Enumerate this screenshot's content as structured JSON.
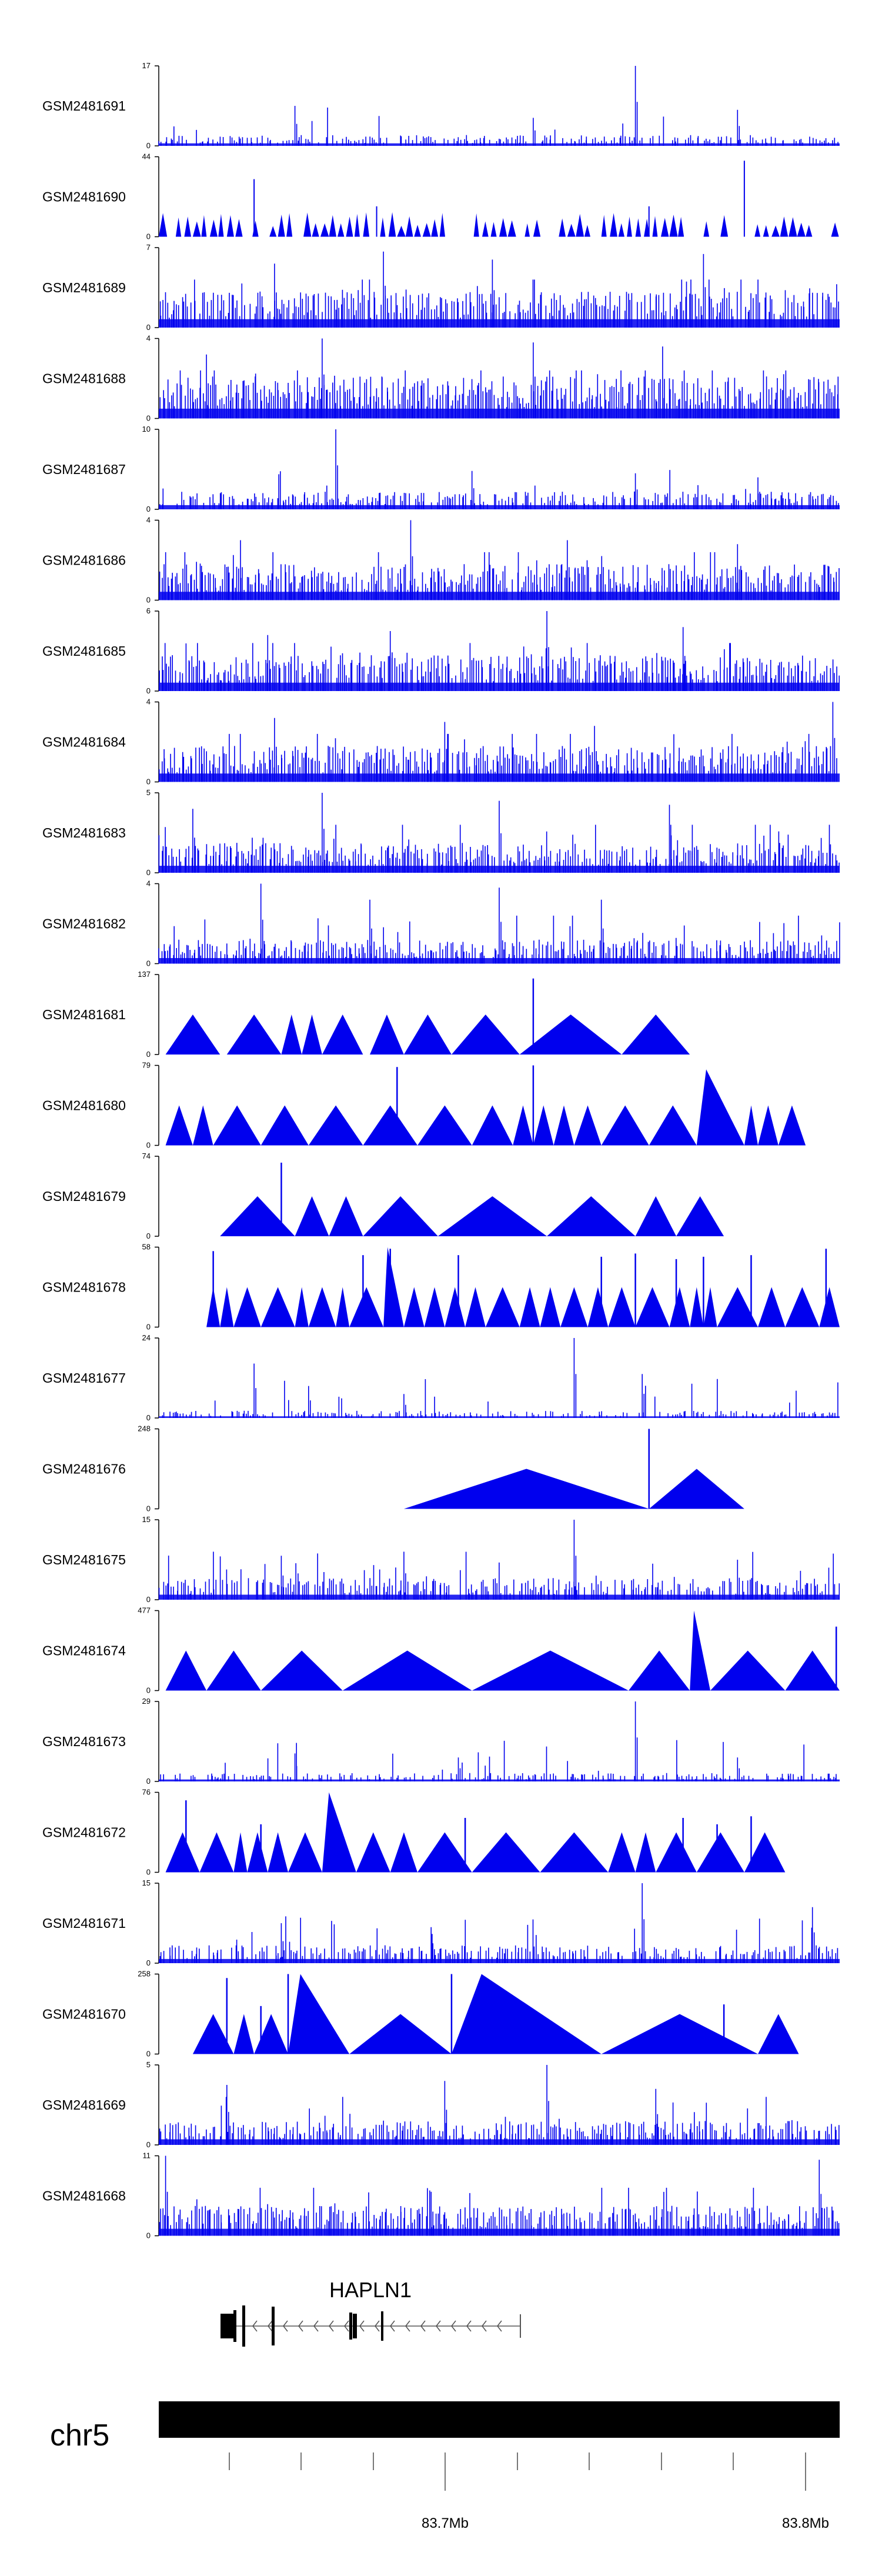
{
  "chart_data": {
    "type": "area",
    "title": "",
    "color": "#0000ee",
    "tracks": [
      {
        "name": "GSM2481691",
        "ymax": "17",
        "ymin": "0",
        "style": "dense",
        "base": 0.09,
        "density": 0.55,
        "peaks": [
          [
            0.7,
            1.0
          ],
          [
            0.85,
            0.45
          ],
          [
            0.2,
            0.5
          ],
          [
            0.55,
            0.35
          ]
        ]
      },
      {
        "name": "GSM2481690",
        "ymax": "44",
        "ymin": "0",
        "style": "sawtooth",
        "base": 0.22,
        "density": 0.5,
        "peaks": [
          [
            0.86,
            0.95
          ],
          [
            0.14,
            0.72
          ],
          [
            0.32,
            0.38
          ],
          [
            0.72,
            0.38
          ]
        ]
      },
      {
        "name": "GSM2481689",
        "ymax": "7",
        "ymin": "0",
        "style": "dense",
        "base": 0.3,
        "density": 0.85,
        "peaks": [
          [
            0.33,
            0.95
          ],
          [
            0.8,
            0.92
          ],
          [
            0.49,
            0.85
          ],
          [
            0.17,
            0.8
          ]
        ]
      },
      {
        "name": "GSM2481688",
        "ymax": "4",
        "ymin": "0",
        "style": "dense",
        "base": 0.35,
        "density": 0.95,
        "peaks": [
          [
            0.24,
            1.0
          ],
          [
            0.55,
            0.95
          ],
          [
            0.74,
            0.9
          ],
          [
            0.07,
            0.8
          ]
        ]
      },
      {
        "name": "GSM2481687",
        "ymax": "10",
        "ymin": "0",
        "style": "dense",
        "base": 0.15,
        "density": 0.75,
        "peaks": [
          [
            0.26,
            1.0
          ],
          [
            0.46,
            0.48
          ],
          [
            0.7,
            0.45
          ],
          [
            0.88,
            0.4
          ]
        ]
      },
      {
        "name": "GSM2481686",
        "ymax": "4",
        "ymin": "0",
        "style": "dense",
        "base": 0.3,
        "density": 0.9,
        "peaks": [
          [
            0.37,
            1.0
          ],
          [
            0.12,
            0.75
          ],
          [
            0.6,
            0.75
          ],
          [
            0.85,
            0.7
          ]
        ]
      },
      {
        "name": "GSM2481685",
        "ymax": "6",
        "ymin": "0",
        "style": "dense",
        "base": 0.3,
        "density": 0.9,
        "peaks": [
          [
            0.57,
            1.0
          ],
          [
            0.34,
            0.75
          ],
          [
            0.77,
            0.8
          ],
          [
            0.16,
            0.7
          ]
        ]
      },
      {
        "name": "GSM2481684",
        "ymax": "4",
        "ymin": "0",
        "style": "dense",
        "base": 0.3,
        "density": 0.9,
        "peaks": [
          [
            0.99,
            1.0
          ],
          [
            0.17,
            0.8
          ],
          [
            0.42,
            0.75
          ],
          [
            0.64,
            0.7
          ]
        ]
      },
      {
        "name": "GSM2481683",
        "ymax": "5",
        "ymin": "0",
        "style": "dense",
        "base": 0.25,
        "density": 0.85,
        "peaks": [
          [
            0.24,
            1.0
          ],
          [
            0.5,
            0.9
          ],
          [
            0.75,
            0.85
          ],
          [
            0.05,
            0.8
          ]
        ]
      },
      {
        "name": "GSM2481682",
        "ymax": "4",
        "ymin": "0",
        "style": "dense",
        "base": 0.2,
        "density": 0.85,
        "peaks": [
          [
            0.15,
            1.0
          ],
          [
            0.5,
            0.95
          ],
          [
            0.31,
            0.8
          ],
          [
            0.65,
            0.8
          ]
        ]
      },
      {
        "name": "GSM2481681",
        "ymax": "137",
        "ymin": "0",
        "style": "triangles",
        "tri": [
          [
            0.01,
            0.09,
            0.5
          ],
          [
            0.1,
            0.18,
            0.5
          ],
          [
            0.18,
            0.21,
            0.5
          ],
          [
            0.21,
            0.24,
            0.5
          ],
          [
            0.24,
            0.3,
            0.5
          ],
          [
            0.31,
            0.36,
            0.5
          ],
          [
            0.36,
            0.43,
            0.5
          ],
          [
            0.43,
            0.53,
            0.5
          ],
          [
            0.53,
            0.68,
            0.5
          ],
          [
            0.68,
            0.78,
            0.5
          ]
        ],
        "spikes": [
          [
            0.55,
            0.95
          ]
        ]
      },
      {
        "name": "GSM2481680",
        "ymax": "79",
        "ymin": "0",
        "style": "triangles",
        "tri": [
          [
            0.01,
            0.05,
            0.5
          ],
          [
            0.05,
            0.08,
            0.5
          ],
          [
            0.08,
            0.15,
            0.5
          ],
          [
            0.15,
            0.22,
            0.5
          ],
          [
            0.22,
            0.3,
            0.5
          ],
          [
            0.3,
            0.38,
            0.5
          ],
          [
            0.38,
            0.46,
            0.5
          ],
          [
            0.46,
            0.52,
            0.5
          ],
          [
            0.52,
            0.55,
            0.5
          ],
          [
            0.55,
            0.58,
            0.5
          ],
          [
            0.58,
            0.61,
            0.5
          ],
          [
            0.61,
            0.65,
            0.5
          ],
          [
            0.65,
            0.72,
            0.5
          ],
          [
            0.72,
            0.79,
            0.5
          ],
          [
            0.79,
            0.86,
            0.95
          ],
          [
            0.86,
            0.88,
            0.5
          ],
          [
            0.88,
            0.91,
            0.5
          ],
          [
            0.91,
            0.95,
            0.5
          ]
        ],
        "spikes": [
          [
            0.35,
            0.98
          ],
          [
            0.55,
            1.0
          ]
        ]
      },
      {
        "name": "GSM2481679",
        "ymax": "74",
        "ymin": "0",
        "style": "triangles",
        "tri": [
          [
            0.09,
            0.2,
            0.5
          ],
          [
            0.2,
            0.25,
            0.5
          ],
          [
            0.25,
            0.3,
            0.5
          ],
          [
            0.3,
            0.41,
            0.5
          ],
          [
            0.41,
            0.57,
            0.5
          ],
          [
            0.57,
            0.7,
            0.5
          ],
          [
            0.7,
            0.76,
            0.5
          ],
          [
            0.76,
            0.83,
            0.5
          ]
        ],
        "spikes": [
          [
            0.18,
            0.92
          ]
        ]
      },
      {
        "name": "GSM2481678",
        "ymax": "58",
        "ymin": "0",
        "style": "triangles",
        "tri": [
          [
            0.07,
            0.09,
            0.5
          ],
          [
            0.09,
            0.11,
            0.5
          ],
          [
            0.11,
            0.15,
            0.5
          ],
          [
            0.15,
            0.2,
            0.5
          ],
          [
            0.2,
            0.22,
            0.5
          ],
          [
            0.22,
            0.26,
            0.5
          ],
          [
            0.26,
            0.28,
            0.5
          ],
          [
            0.28,
            0.33,
            0.5
          ],
          [
            0.33,
            0.36,
            1.0
          ],
          [
            0.36,
            0.39,
            0.5
          ],
          [
            0.39,
            0.42,
            0.5
          ],
          [
            0.42,
            0.45,
            0.5
          ],
          [
            0.45,
            0.48,
            0.5
          ],
          [
            0.48,
            0.53,
            0.5
          ],
          [
            0.53,
            0.56,
            0.5
          ],
          [
            0.56,
            0.59,
            0.5
          ],
          [
            0.59,
            0.63,
            0.5
          ],
          [
            0.63,
            0.66,
            0.5
          ],
          [
            0.66,
            0.7,
            0.5
          ],
          [
            0.7,
            0.75,
            0.5
          ],
          [
            0.75,
            0.78,
            0.5
          ],
          [
            0.78,
            0.8,
            0.5
          ],
          [
            0.8,
            0.82,
            0.5
          ],
          [
            0.82,
            0.88,
            0.5
          ],
          [
            0.88,
            0.92,
            0.5
          ],
          [
            0.92,
            0.97,
            0.5
          ],
          [
            0.97,
            1.0,
            0.5
          ]
        ],
        "spikes": [
          [
            0.08,
            0.95
          ],
          [
            0.3,
            0.9
          ],
          [
            0.34,
            0.98
          ],
          [
            0.44,
            0.9
          ],
          [
            0.65,
            0.88
          ],
          [
            0.7,
            0.92
          ],
          [
            0.76,
            0.85
          ],
          [
            0.8,
            0.88
          ],
          [
            0.87,
            0.9
          ],
          [
            0.98,
            0.98
          ]
        ]
      },
      {
        "name": "GSM2481677",
        "ymax": "24",
        "ymin": "0",
        "style": "dense",
        "base": 0.06,
        "density": 0.5,
        "peaks": [
          [
            0.61,
            1.0
          ],
          [
            0.14,
            0.68
          ],
          [
            0.71,
            0.55
          ],
          [
            0.22,
            0.4
          ],
          [
            0.36,
            0.3
          ]
        ]
      },
      {
        "name": "GSM2481676",
        "ymax": "248",
        "ymin": "0",
        "style": "triangles",
        "tri": [
          [
            0.36,
            0.72,
            0.5
          ],
          [
            0.72,
            0.86,
            0.5
          ]
        ],
        "spikes": [
          [
            0.72,
            1.0
          ]
        ]
      },
      {
        "name": "GSM2481675",
        "ymax": "15",
        "ymin": "0",
        "style": "dense",
        "base": 0.18,
        "density": 0.7,
        "peaks": [
          [
            0.61,
            1.0
          ],
          [
            0.36,
            0.6
          ],
          [
            0.18,
            0.55
          ],
          [
            0.85,
            0.5
          ]
        ]
      },
      {
        "name": "GSM2481674",
        "ymax": "477",
        "ymin": "0",
        "style": "triangles",
        "tri": [
          [
            0.01,
            0.07,
            0.5
          ],
          [
            0.07,
            0.15,
            0.5
          ],
          [
            0.15,
            0.27,
            0.5
          ],
          [
            0.27,
            0.46,
            0.5
          ],
          [
            0.46,
            0.69,
            0.5
          ],
          [
            0.69,
            0.78,
            0.5
          ],
          [
            0.78,
            0.81,
            1.0
          ],
          [
            0.81,
            0.92,
            0.5
          ],
          [
            0.92,
            1.0,
            0.5
          ]
        ],
        "spikes": [
          [
            0.995,
            0.8
          ]
        ]
      },
      {
        "name": "GSM2481673",
        "ymax": "29",
        "ymin": "0",
        "style": "dense",
        "base": 0.07,
        "density": 0.55,
        "peaks": [
          [
            0.7,
            1.0
          ],
          [
            0.2,
            0.35
          ],
          [
            0.44,
            0.3
          ],
          [
            0.85,
            0.3
          ]
        ]
      },
      {
        "name": "GSM2481672",
        "ymax": "76",
        "ymin": "0",
        "style": "triangles",
        "tri": [
          [
            0.01,
            0.06,
            0.5
          ],
          [
            0.06,
            0.11,
            0.5
          ],
          [
            0.11,
            0.13,
            0.5
          ],
          [
            0.13,
            0.16,
            0.5
          ],
          [
            0.16,
            0.19,
            0.5
          ],
          [
            0.19,
            0.24,
            0.5
          ],
          [
            0.24,
            0.29,
            1.0
          ],
          [
            0.29,
            0.34,
            0.5
          ],
          [
            0.34,
            0.38,
            0.5
          ],
          [
            0.38,
            0.46,
            0.5
          ],
          [
            0.46,
            0.56,
            0.5
          ],
          [
            0.56,
            0.66,
            0.5
          ],
          [
            0.66,
            0.7,
            0.5
          ],
          [
            0.7,
            0.73,
            0.5
          ],
          [
            0.73,
            0.79,
            0.5
          ],
          [
            0.79,
            0.86,
            0.5
          ],
          [
            0.86,
            0.92,
            0.5
          ]
        ],
        "spikes": [
          [
            0.04,
            0.9
          ],
          [
            0.15,
            0.6
          ],
          [
            0.45,
            0.68
          ],
          [
            0.77,
            0.68
          ],
          [
            0.82,
            0.6
          ],
          [
            0.87,
            0.7
          ]
        ]
      },
      {
        "name": "GSM2481671",
        "ymax": "15",
        "ymin": "0",
        "style": "dense",
        "base": 0.15,
        "density": 0.7,
        "peaks": [
          [
            0.71,
            1.0
          ],
          [
            0.96,
            0.7
          ],
          [
            0.18,
            0.5
          ],
          [
            0.4,
            0.45
          ]
        ]
      },
      {
        "name": "GSM2481670",
        "ymax": "258",
        "ymin": "0",
        "style": "triangles",
        "tri": [
          [
            0.05,
            0.11,
            0.5
          ],
          [
            0.11,
            0.14,
            0.5
          ],
          [
            0.14,
            0.19,
            0.5
          ],
          [
            0.19,
            0.28,
            1.0
          ],
          [
            0.28,
            0.43,
            0.5
          ],
          [
            0.43,
            0.65,
            1.0
          ],
          [
            0.65,
            0.88,
            0.5
          ],
          [
            0.88,
            0.94,
            0.5
          ]
        ],
        "spikes": [
          [
            0.1,
            0.95
          ],
          [
            0.15,
            0.6
          ],
          [
            0.19,
            1.0
          ],
          [
            0.43,
            1.0
          ],
          [
            0.83,
            0.62
          ]
        ]
      },
      {
        "name": "GSM2481669",
        "ymax": "5",
        "ymin": "0",
        "style": "dense",
        "base": 0.2,
        "density": 0.8,
        "peaks": [
          [
            0.57,
            1.0
          ],
          [
            0.42,
            0.8
          ],
          [
            0.1,
            0.75
          ],
          [
            0.73,
            0.7
          ]
        ]
      },
      {
        "name": "GSM2481668",
        "ymax": "11",
        "ymin": "0",
        "style": "dense",
        "base": 0.25,
        "density": 0.85,
        "peaks": [
          [
            0.01,
            1.0
          ],
          [
            0.97,
            0.95
          ],
          [
            0.69,
            0.6
          ],
          [
            0.4,
            0.55
          ]
        ]
      }
    ],
    "gene": {
      "name": "HAPLN1",
      "strand": "-"
    },
    "chromosome": "chr5",
    "xaxis": {
      "tick_labels": [
        "83.7Mb",
        "83.8Mb"
      ]
    }
  }
}
